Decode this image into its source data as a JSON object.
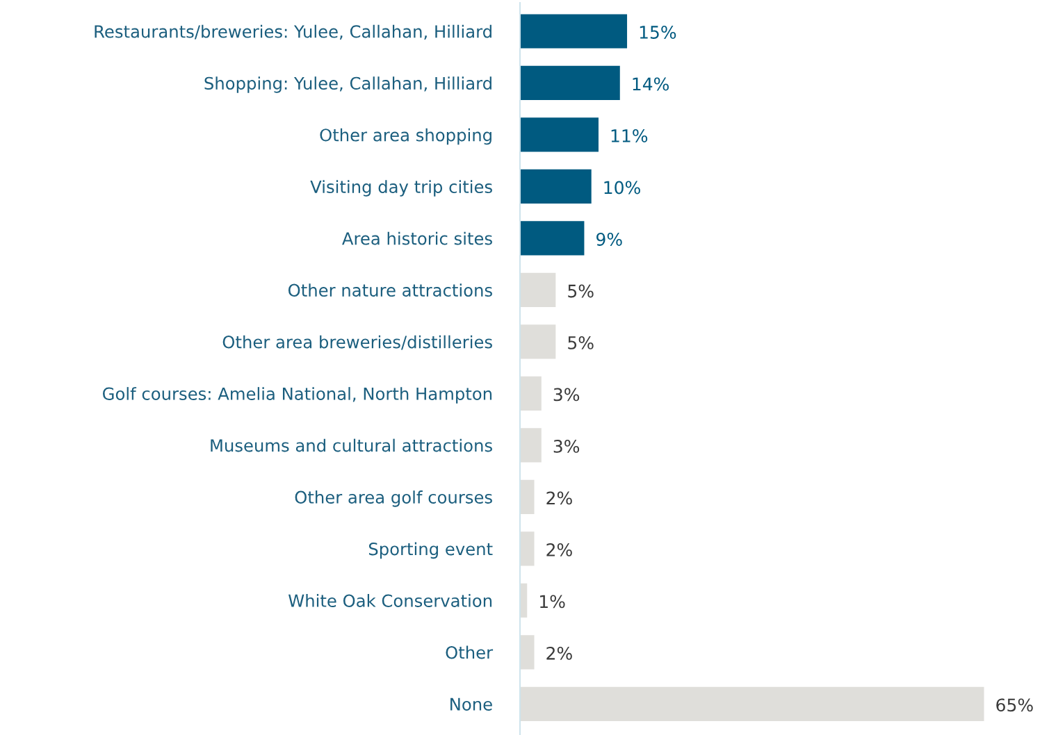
{
  "chart_data": {
    "type": "bar",
    "orientation": "horizontal",
    "categories": [
      "Restaurants/breweries: Yulee, Callahan, Hilliard",
      "Shopping: Yulee, Callahan, Hilliard",
      "Other area shopping",
      "Visiting day trip cities",
      "Area historic sites",
      "Other nature attractions",
      "Other area breweries/distilleries",
      "Golf courses: Amelia National, North Hampton",
      "Museums and cultural attractions",
      "Other area golf courses",
      "Sporting event",
      "White Oak Conservation",
      "Other",
      "None"
    ],
    "values": [
      15,
      14,
      11,
      10,
      9,
      5,
      5,
      3,
      3,
      2,
      2,
      1,
      2,
      65
    ],
    "value_labels": [
      "15%",
      "14%",
      "11%",
      "10%",
      "9%",
      "5%",
      "5%",
      "3%",
      "3%",
      "2%",
      "2%",
      "1%",
      "2%",
      "65%"
    ],
    "colors": [
      "#005a80",
      "#005a80",
      "#005a80",
      "#005a80",
      "#005a80",
      "#dfdeda",
      "#dfdeda",
      "#dfdeda",
      "#dfdeda",
      "#dfdeda",
      "#dfdeda",
      "#dfdeda",
      "#dfdeda",
      "#dfdeda"
    ],
    "grid": false,
    "legend": false
  }
}
